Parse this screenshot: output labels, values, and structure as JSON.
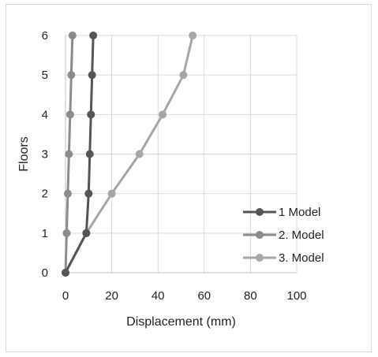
{
  "chart_data": {
    "type": "line",
    "xlabel": "Displacement (mm)",
    "ylabel": "Floors",
    "xlim": [
      0,
      100
    ],
    "ylim": [
      0,
      6
    ],
    "xticks": [
      0,
      20,
      40,
      60,
      80,
      100
    ],
    "yticks": [
      0,
      1,
      2,
      3,
      4,
      5,
      6
    ],
    "grid": true,
    "legend_position": "right",
    "series": [
      {
        "name": "1 Model",
        "color": "#555555",
        "points": [
          [
            0,
            0
          ],
          [
            9,
            1
          ],
          [
            10,
            2
          ],
          [
            10.5,
            3
          ],
          [
            11,
            4
          ],
          [
            11.5,
            5
          ],
          [
            12,
            6
          ]
        ]
      },
      {
        "name": "2. Model",
        "color": "#8c8c8c",
        "points": [
          [
            0,
            0
          ],
          [
            0.5,
            1
          ],
          [
            1,
            2
          ],
          [
            1.5,
            3
          ],
          [
            2,
            4
          ],
          [
            2.5,
            5
          ],
          [
            3,
            6
          ]
        ]
      },
      {
        "name": "3. Model",
        "color": "#a6a6a6",
        "points": [
          [
            0,
            0
          ],
          [
            9,
            1
          ],
          [
            20,
            2
          ],
          [
            32,
            3
          ],
          [
            42,
            4
          ],
          [
            51,
            5
          ],
          [
            55,
            6
          ]
        ]
      }
    ]
  }
}
